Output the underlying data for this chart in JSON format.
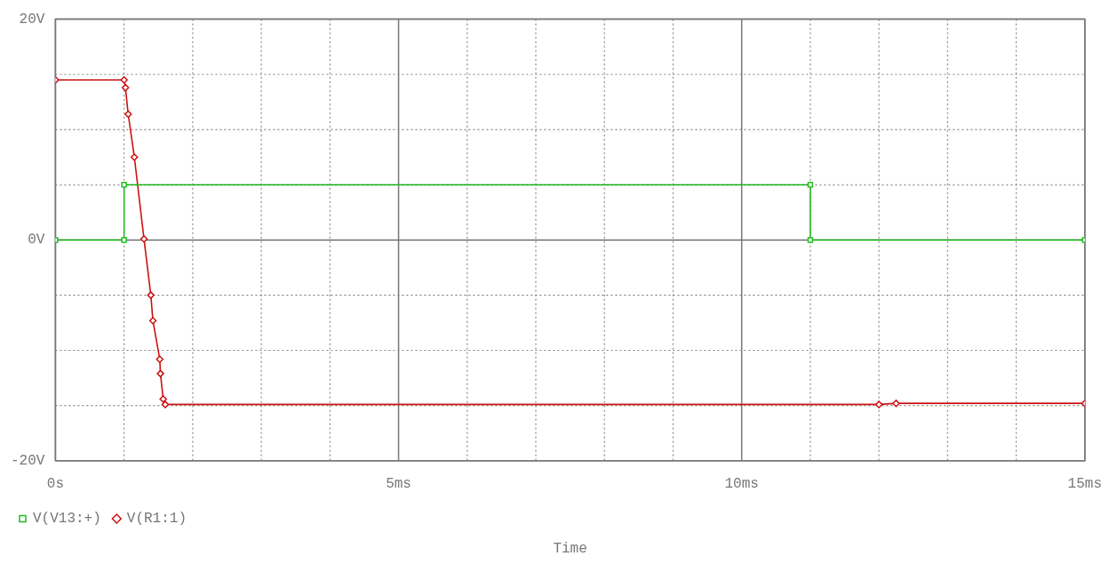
{
  "chart_data": {
    "type": "line",
    "xlabel": "Time",
    "xlim": [
      0,
      15
    ],
    "ylim": [
      -20,
      20
    ],
    "xticks": [
      {
        "value": 0,
        "label": "0s"
      },
      {
        "value": 1,
        "label": null
      },
      {
        "value": 2,
        "label": null
      },
      {
        "value": 3,
        "label": null
      },
      {
        "value": 4,
        "label": null
      },
      {
        "value": 5,
        "label": "5ms"
      },
      {
        "value": 6,
        "label": null
      },
      {
        "value": 7,
        "label": null
      },
      {
        "value": 8,
        "label": null
      },
      {
        "value": 9,
        "label": null
      },
      {
        "value": 10,
        "label": "10ms"
      },
      {
        "value": 11,
        "label": null
      },
      {
        "value": 12,
        "label": null
      },
      {
        "value": 13,
        "label": null
      },
      {
        "value": 14,
        "label": null
      },
      {
        "value": 15,
        "label": "15ms"
      }
    ],
    "yticks": [
      {
        "value": -20,
        "label": "-20V"
      },
      {
        "value": -15,
        "label": null
      },
      {
        "value": -10,
        "label": null
      },
      {
        "value": -5,
        "label": null
      },
      {
        "value": 0,
        "label": "0V"
      },
      {
        "value": 5,
        "label": null
      },
      {
        "value": 10,
        "label": null
      },
      {
        "value": 15,
        "label": null
      },
      {
        "value": 20,
        "label": "20V"
      }
    ],
    "grid": true,
    "legend": "bottom left",
    "line_style": "solid",
    "series": [
      {
        "name": "V(V13:+)",
        "color": "#22bb22",
        "marker": "square",
        "x": [
          0,
          1,
          1,
          11,
          11,
          15
        ],
        "values": [
          0,
          0,
          5,
          5,
          0,
          0
        ]
      },
      {
        "name": "V(R1:1)",
        "color": "#cc1111",
        "marker": "diamond",
        "x": [
          0,
          1.0,
          1.02,
          1.06,
          1.15,
          1.29,
          1.39,
          1.42,
          1.52,
          1.53,
          1.57,
          1.6,
          12.0,
          12.25,
          15
        ],
        "values": [
          14.5,
          14.5,
          13.8,
          11.4,
          7.5,
          0.1,
          -5.0,
          -7.3,
          -10.8,
          -12.1,
          -14.4,
          -14.9,
          -14.9,
          -14.8,
          -14.8
        ]
      }
    ]
  }
}
